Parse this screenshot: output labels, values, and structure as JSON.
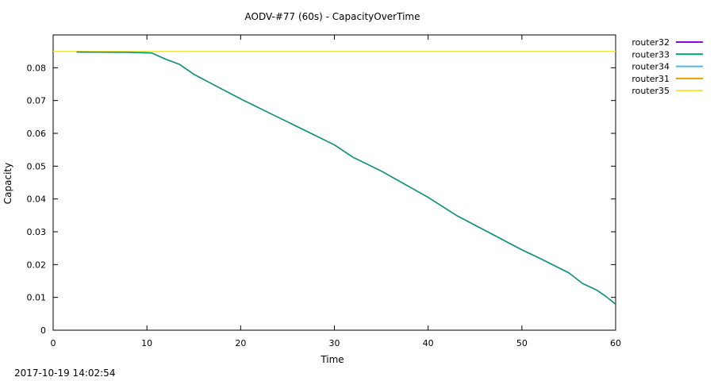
{
  "timestamp": "2017-10-19 14:02:54",
  "chart_data": {
    "type": "line",
    "title": "AODV-#77 (60s) - CapacityOverTime",
    "xlabel": "Time",
    "ylabel": "Capacity",
    "xlim": [
      0,
      60
    ],
    "ylim": [
      0,
      0.09
    ],
    "xticks": [
      0,
      10,
      20,
      30,
      40,
      50,
      60
    ],
    "yticks": [
      0,
      0.01,
      0.02,
      0.03,
      0.04,
      0.05,
      0.06,
      0.07,
      0.08
    ],
    "ytick_labels": [
      "0",
      "0.01",
      "0.02",
      "0.03",
      "0.04",
      "0.05",
      "0.06",
      "0.07",
      "0.08"
    ],
    "grid": false,
    "legend_position": "outside-right-top",
    "series": [
      {
        "name": "router32",
        "color": "#9400d3",
        "x": [
          2.5,
          8,
          10.5,
          12,
          13.5,
          15,
          17,
          20,
          23,
          25,
          30,
          32,
          35,
          40,
          43,
          45,
          50,
          52,
          55,
          56.5,
          58,
          59,
          60
        ],
        "y": [
          0.0848,
          0.0847,
          0.0845,
          0.0826,
          0.081,
          0.078,
          0.075,
          0.0705,
          0.0663,
          0.0635,
          0.0565,
          0.0527,
          0.0485,
          0.0405,
          0.035,
          0.032,
          0.0245,
          0.0218,
          0.0175,
          0.0142,
          0.0122,
          0.0102,
          0.0079
        ]
      },
      {
        "name": "router33",
        "color": "#009e73",
        "x": [
          2.5,
          8,
          10.5,
          12,
          13.5,
          15,
          17,
          20,
          23,
          25,
          30,
          32,
          35,
          40,
          43,
          45,
          50,
          52,
          55,
          56.5,
          58,
          59,
          60
        ],
        "y": [
          0.0848,
          0.0847,
          0.0845,
          0.0826,
          0.081,
          0.078,
          0.075,
          0.0705,
          0.0663,
          0.0635,
          0.0565,
          0.0527,
          0.0485,
          0.0405,
          0.035,
          0.032,
          0.0245,
          0.0218,
          0.0175,
          0.0142,
          0.0122,
          0.0102,
          0.0079
        ]
      },
      {
        "name": "router34",
        "color": "#56b4e9",
        "x": [
          0,
          60
        ],
        "y": [
          0.085,
          0.085
        ]
      },
      {
        "name": "router31",
        "color": "#e69f00",
        "x": [
          0,
          60
        ],
        "y": [
          0.085,
          0.085
        ]
      },
      {
        "name": "router35",
        "color": "#f0e442",
        "x": [
          0,
          60
        ],
        "y": [
          0.085,
          0.085
        ]
      }
    ]
  }
}
